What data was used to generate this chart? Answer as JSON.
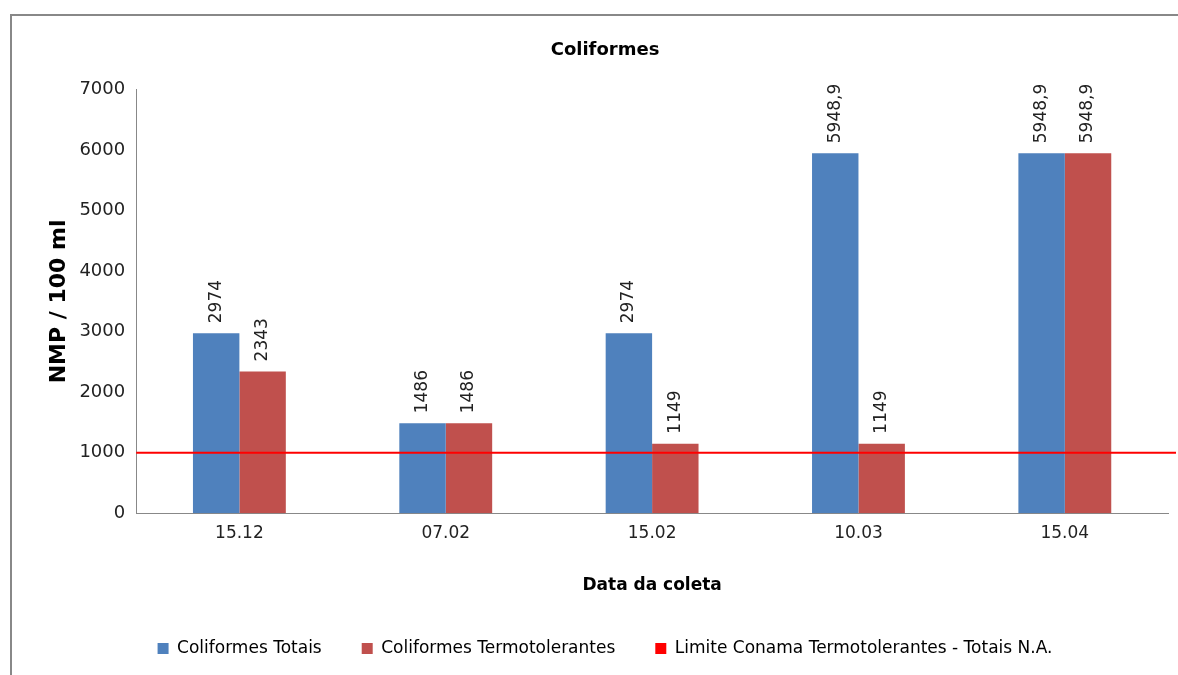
{
  "chart_data": {
    "type": "bar",
    "title": "Coliformes",
    "xlabel": "Data da coleta",
    "ylabel": "NMP / 100 ml",
    "categories": [
      "15.12",
      "07.02",
      "15.02",
      "10.03",
      "15.04"
    ],
    "series": [
      {
        "name": "Coliformes Totais",
        "color": "#4f81bd",
        "values": [
          2974,
          1486,
          2974,
          5948.9,
          5948.9
        ],
        "value_labels": [
          "2974",
          "1486",
          "2974",
          "5948,9",
          "5948,9"
        ]
      },
      {
        "name": "Coliformes Termotolerantes",
        "color": "#c0504d",
        "values": [
          2343,
          1486,
          1149,
          1149,
          5948.9
        ],
        "value_labels": [
          "2343",
          "1486",
          "1149",
          "1149",
          "5948,9"
        ]
      }
    ],
    "ylim": [
      0,
      7000
    ],
    "yticks": [
      0,
      1000,
      2000,
      3000,
      4000,
      5000,
      6000,
      7000
    ],
    "ref_lines": [
      {
        "axis": "y",
        "value": 1000,
        "label": "Limite Conama Termotolerantes - Totais N.A.",
        "color": "#ff0000"
      }
    ],
    "legend": "bottom",
    "grid": false
  }
}
